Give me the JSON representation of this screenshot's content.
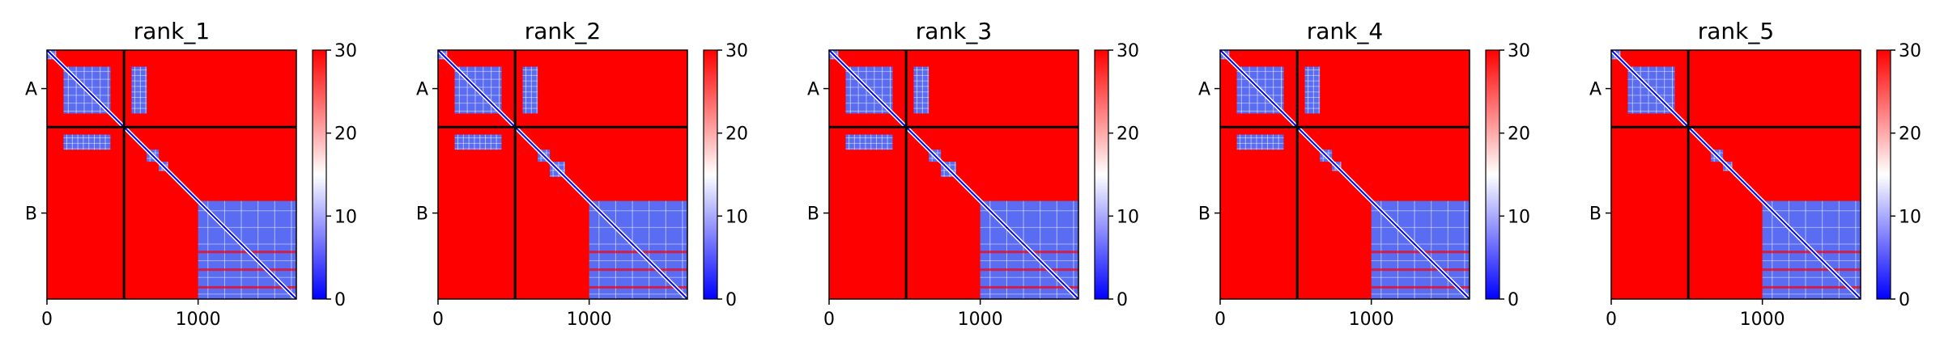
{
  "figure": {
    "colormap": {
      "low": "#0000ff",
      "mid": "#ffffff",
      "high": "#ff0000"
    }
  },
  "chart_data": [
    {
      "type": "heatmap",
      "title": "rank_1",
      "n": 1650,
      "chain_boundary": 510,
      "chains": [
        {
          "label": "A",
          "center": 255
        },
        {
          "label": "B",
          "center": 1080
        }
      ],
      "xticks": [
        0,
        1000
      ],
      "colorbar": {
        "min": 0,
        "max": 30,
        "ticks": [
          0,
          10,
          20,
          30
        ]
      },
      "low_regions": [
        [
          0,
          60,
          0,
          60
        ],
        [
          110,
          420,
          110,
          420
        ],
        [
          1000,
          1650,
          1000,
          1650
        ],
        [
          560,
          660,
          110,
          420
        ],
        [
          110,
          420,
          560,
          660
        ],
        [
          660,
          740,
          660,
          740
        ],
        [
          740,
          800,
          740,
          800
        ]
      ]
    },
    {
      "type": "heatmap",
      "title": "rank_2",
      "n": 1650,
      "chain_boundary": 510,
      "chains": [
        {
          "label": "A",
          "center": 255
        },
        {
          "label": "B",
          "center": 1080
        }
      ],
      "xticks": [
        0,
        1000
      ],
      "colorbar": {
        "min": 0,
        "max": 30,
        "ticks": [
          0,
          10,
          20,
          30
        ]
      },
      "low_regions": [
        [
          0,
          60,
          0,
          60
        ],
        [
          110,
          420,
          110,
          420
        ],
        [
          1000,
          1650,
          1000,
          1650
        ],
        [
          560,
          660,
          110,
          420
        ],
        [
          110,
          420,
          560,
          660
        ],
        [
          660,
          740,
          660,
          740
        ],
        [
          740,
          840,
          740,
          840
        ]
      ]
    },
    {
      "type": "heatmap",
      "title": "rank_3",
      "n": 1650,
      "chain_boundary": 510,
      "chains": [
        {
          "label": "A",
          "center": 255
        },
        {
          "label": "B",
          "center": 1080
        }
      ],
      "xticks": [
        0,
        1000
      ],
      "colorbar": {
        "min": 0,
        "max": 30,
        "ticks": [
          0,
          10,
          20,
          30
        ]
      },
      "low_regions": [
        [
          0,
          60,
          0,
          60
        ],
        [
          110,
          420,
          110,
          420
        ],
        [
          1000,
          1650,
          1000,
          1650
        ],
        [
          560,
          660,
          110,
          420
        ],
        [
          110,
          420,
          560,
          660
        ],
        [
          660,
          740,
          660,
          740
        ],
        [
          740,
          840,
          740,
          840
        ]
      ]
    },
    {
      "type": "heatmap",
      "title": "rank_4",
      "n": 1650,
      "chain_boundary": 510,
      "chains": [
        {
          "label": "A",
          "center": 255
        },
        {
          "label": "B",
          "center": 1080
        }
      ],
      "xticks": [
        0,
        1000
      ],
      "colorbar": {
        "min": 0,
        "max": 30,
        "ticks": [
          0,
          10,
          20,
          30
        ]
      },
      "low_regions": [
        [
          0,
          60,
          0,
          60
        ],
        [
          110,
          420,
          110,
          420
        ],
        [
          1000,
          1650,
          1000,
          1650
        ],
        [
          560,
          660,
          110,
          420
        ],
        [
          110,
          420,
          560,
          660
        ],
        [
          660,
          740,
          660,
          740
        ],
        [
          740,
          800,
          740,
          800
        ]
      ]
    },
    {
      "type": "heatmap",
      "title": "rank_5",
      "n": 1650,
      "chain_boundary": 510,
      "chains": [
        {
          "label": "A",
          "center": 255
        },
        {
          "label": "B",
          "center": 1080
        }
      ],
      "xticks": [
        0,
        1000
      ],
      "colorbar": {
        "min": 0,
        "max": 30,
        "ticks": [
          0,
          10,
          20,
          30
        ]
      },
      "low_regions": [
        [
          0,
          60,
          0,
          60
        ],
        [
          110,
          420,
          110,
          420
        ],
        [
          1000,
          1650,
          1000,
          1650
        ],
        [
          660,
          740,
          660,
          740
        ],
        [
          740,
          800,
          740,
          800
        ]
      ]
    }
  ]
}
